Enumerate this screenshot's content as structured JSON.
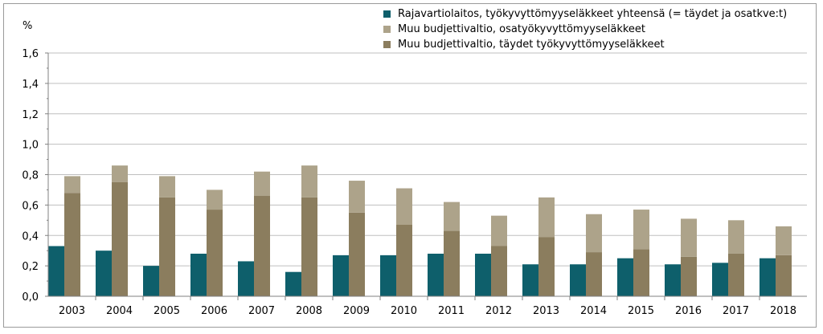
{
  "chart_data": {
    "type": "bar",
    "ylabel": "%",
    "ylim": [
      0,
      1.6
    ],
    "yticks": [
      "0,0",
      "0,2",
      "0,4",
      "0,6",
      "0,8",
      "1,0",
      "1,2",
      "1,4",
      "1,6"
    ],
    "grid": true,
    "legend_position": "top-right",
    "categories": [
      "2003",
      "2004",
      "2005",
      "2006",
      "2007",
      "2008",
      "2009",
      "2010",
      "2011",
      "2012",
      "2013",
      "2014",
      "2015",
      "2016",
      "2017",
      "2018"
    ],
    "series": [
      {
        "name": "Rajavartiolaitos, työkyvyttömyyseläkkeet yhteensä (= täydet ja osatkve:t)",
        "color": "#0e5f6b",
        "stack": "a",
        "values": [
          0.33,
          0.3,
          0.2,
          0.28,
          0.23,
          0.16,
          0.27,
          0.27,
          0.28,
          0.28,
          0.21,
          0.21,
          0.25,
          0.21,
          0.22,
          0.25
        ]
      },
      {
        "name": "Muu budjettivaltio, täydet työkyvyttömyyseläkkeet",
        "color": "#8b7d5e",
        "stack": "b",
        "values": [
          0.68,
          0.75,
          0.65,
          0.57,
          0.66,
          0.65,
          0.55,
          0.47,
          0.43,
          0.33,
          0.39,
          0.29,
          0.31,
          0.26,
          0.28,
          0.27
        ]
      },
      {
        "name": "Muu budjettivaltio, osatyökyvyttömyyseläkkeet",
        "color": "#ada38a",
        "stack": "b",
        "values": [
          0.11,
          0.11,
          0.14,
          0.13,
          0.16,
          0.21,
          0.21,
          0.24,
          0.19,
          0.2,
          0.26,
          0.25,
          0.26,
          0.25,
          0.22,
          0.19
        ]
      }
    ],
    "legend_order": [
      0,
      2,
      1
    ]
  }
}
